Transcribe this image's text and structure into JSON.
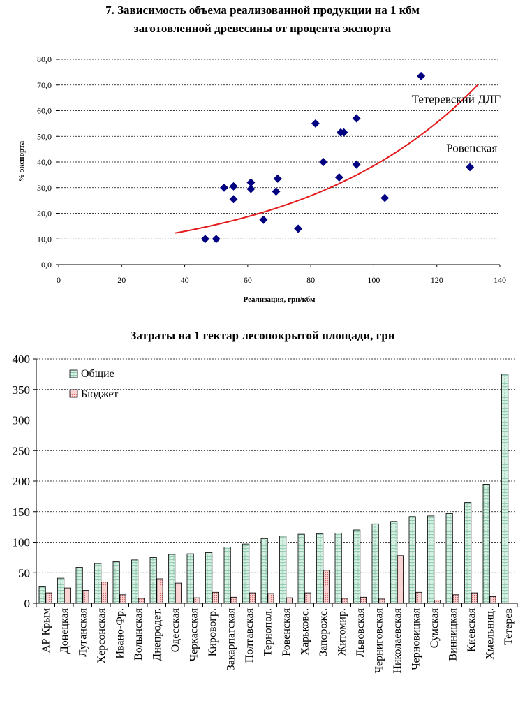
{
  "chart_data": [
    {
      "type": "scatter",
      "title_line1": "7. Зависимость объема реализованной продукции на 1 кбм",
      "title_line2": "заготовленной древесины от процента экспорта",
      "xlabel": "Реализация, грн/кбм",
      "ylabel": "% экспорта",
      "xlim": [
        0,
        140
      ],
      "ylim": [
        0,
        80
      ],
      "xticks": [
        "0",
        "20",
        "40",
        "60",
        "80",
        "100",
        "120",
        "140"
      ],
      "yticks": [
        "0,0",
        "10,0",
        "20,0",
        "30,0",
        "40,0",
        "50,0",
        "60,0",
        "70,0",
        "80,0"
      ],
      "grid": "horizontal dotted",
      "marker_color": "#000080",
      "trend_color": "#e31a1c",
      "points": [
        {
          "x": 46.5,
          "y": 10
        },
        {
          "x": 50,
          "y": 10
        },
        {
          "x": 52.5,
          "y": 30
        },
        {
          "x": 55.5,
          "y": 30.5
        },
        {
          "x": 55.5,
          "y": 25.5
        },
        {
          "x": 61,
          "y": 32
        },
        {
          "x": 61,
          "y": 29.5
        },
        {
          "x": 65,
          "y": 17.5
        },
        {
          "x": 69,
          "y": 28.5
        },
        {
          "x": 69.5,
          "y": 33.5
        },
        {
          "x": 76,
          "y": 14
        },
        {
          "x": 81.5,
          "y": 55
        },
        {
          "x": 84,
          "y": 40
        },
        {
          "x": 89,
          "y": 34
        },
        {
          "x": 89.5,
          "y": 51.5
        },
        {
          "x": 90.5,
          "y": 51.5
        },
        {
          "x": 94.5,
          "y": 57
        },
        {
          "x": 94.5,
          "y": 39
        },
        {
          "x": 103.5,
          "y": 26
        },
        {
          "x": 115,
          "y": 73.5
        },
        {
          "x": 130.5,
          "y": 38
        }
      ],
      "trend": {
        "x_start": 37,
        "x_end": 133,
        "a": 6.31,
        "b": 0.0181
      },
      "annotations": [
        {
          "text": "Тетеревский ДЛГ",
          "x": 112,
          "y": 63
        },
        {
          "text": "Ровенская",
          "x": 123,
          "y": 44
        }
      ]
    },
    {
      "type": "bar",
      "title": "Затраты на 1 гектар лесопокрытой площади, грн",
      "ylim": [
        0,
        400
      ],
      "yticks": [
        "0",
        "50",
        "100",
        "150",
        "200",
        "250",
        "300",
        "350",
        "400"
      ],
      "grid": "horizontal dotted",
      "legend_position": "top-left",
      "categories": [
        "АР Крым",
        "Донецкая",
        "Луганская",
        "Херсонская",
        "Ивано-Фр.",
        "Волынская",
        "Днепродет.",
        "Одесская",
        "Черкасская",
        "Кировогр.",
        "Закарпатская",
        "Полтавская",
        "Тернопол.",
        "Ровенская",
        "Харьковс.",
        "Запорожс.",
        "Житомир.",
        "Львовская",
        "Черниговская",
        "Николаевская",
        "Черновицкая",
        "Сумская",
        "Винницкая",
        "Киевская",
        "Хмельниц.",
        "Тетерев"
      ],
      "series": [
        {
          "name": "Общие",
          "color": "#cfeee0",
          "values": [
            28,
            41,
            59,
            65,
            68,
            71,
            75,
            80,
            81,
            83,
            92,
            97,
            106,
            110,
            113,
            114,
            115,
            120,
            130,
            134,
            142,
            143,
            147,
            165,
            195,
            375
          ]
        },
        {
          "name": "Бюджет",
          "color": "#f7c3c3",
          "values": [
            17,
            25,
            21,
            35,
            14,
            8,
            40,
            33,
            9,
            18,
            10,
            17,
            16,
            9,
            17,
            54,
            8,
            10,
            7,
            78,
            18,
            5,
            14,
            17,
            11,
            0
          ]
        }
      ]
    }
  ]
}
